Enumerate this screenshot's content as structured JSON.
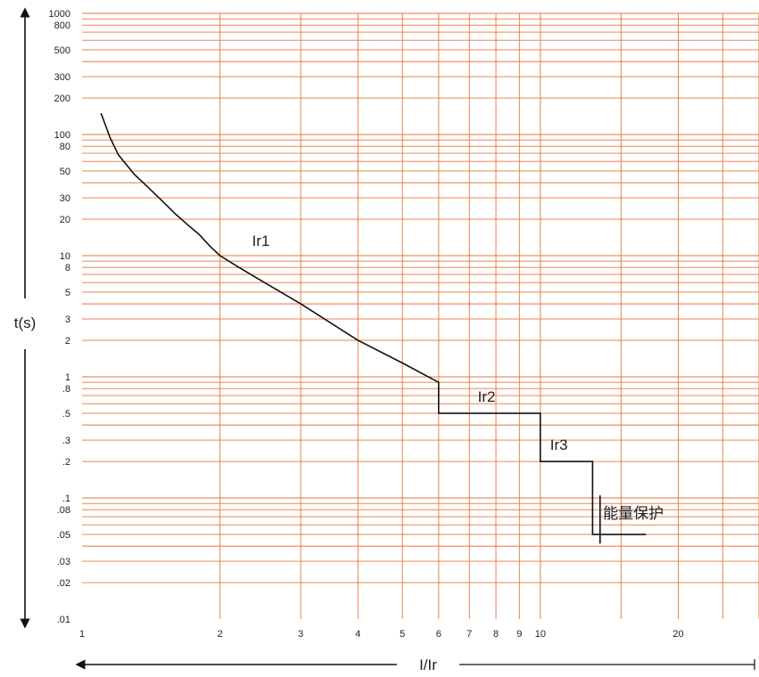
{
  "chart_data": {
    "type": "line",
    "title": "",
    "xlabel": "I/Ir",
    "ylabel": "t(s)",
    "x_scale": "log",
    "y_scale": "log",
    "xlim": [
      1,
      30
    ],
    "ylim": [
      0.01,
      1000
    ],
    "grid": true,
    "grid_color": "#e8743b",
    "curve_color": "#111111",
    "x_ticks": [
      {
        "value": 1,
        "label": "1"
      },
      {
        "value": 2,
        "label": "2"
      },
      {
        "value": 3,
        "label": "3"
      },
      {
        "value": 4,
        "label": "4"
      },
      {
        "value": 5,
        "label": "5"
      },
      {
        "value": 6,
        "label": "6"
      },
      {
        "value": 7,
        "label": "7"
      },
      {
        "value": 8,
        "label": "8"
      },
      {
        "value": 9,
        "label": "9"
      },
      {
        "value": 10,
        "label": "10"
      },
      {
        "value": 20,
        "label": "20"
      }
    ],
    "x_grid": [
      2,
      3,
      4,
      5,
      6,
      7,
      8,
      9,
      10,
      15,
      20,
      25,
      30
    ],
    "y_ticks": [
      {
        "value": 1000,
        "label": "1000"
      },
      {
        "value": 800,
        "label": "800"
      },
      {
        "value": 500,
        "label": "500"
      },
      {
        "value": 300,
        "label": "300"
      },
      {
        "value": 200,
        "label": "200"
      },
      {
        "value": 100,
        "label": "100"
      },
      {
        "value": 80,
        "label": "80"
      },
      {
        "value": 50,
        "label": "50"
      },
      {
        "value": 30,
        "label": "30"
      },
      {
        "value": 20,
        "label": "20"
      },
      {
        "value": 10,
        "label": "10"
      },
      {
        "value": 8,
        "label": "8"
      },
      {
        "value": 5,
        "label": "5"
      },
      {
        "value": 3,
        "label": "3"
      },
      {
        "value": 2,
        "label": "2"
      },
      {
        "value": 1,
        "label": "1"
      },
      {
        "value": 0.8,
        "label": ".8"
      },
      {
        "value": 0.5,
        "label": ".5"
      },
      {
        "value": 0.3,
        "label": ".3"
      },
      {
        "value": 0.2,
        "label": ".2"
      },
      {
        "value": 0.1,
        "label": ".1"
      },
      {
        "value": 0.08,
        "label": ".08"
      },
      {
        "value": 0.05,
        "label": ".05"
      },
      {
        "value": 0.03,
        "label": ".03"
      },
      {
        "value": 0.02,
        "label": ".02"
      },
      {
        "value": 0.01,
        "label": ".01"
      }
    ],
    "y_grid": [
      1000,
      900,
      800,
      700,
      600,
      500,
      400,
      300,
      200,
      100,
      90,
      80,
      70,
      60,
      50,
      40,
      30,
      20,
      10,
      9,
      8,
      7,
      6,
      5,
      4,
      3,
      2,
      1,
      0.9,
      0.8,
      0.7,
      0.6,
      0.5,
      0.4,
      0.3,
      0.2,
      0.1,
      0.09,
      0.08,
      0.07,
      0.06,
      0.05,
      0.04,
      0.03,
      0.02
    ],
    "series": [
      {
        "values": [
          [
            1.1,
            150
          ],
          [
            1.15,
            95
          ],
          [
            1.2,
            68
          ],
          [
            1.3,
            47
          ],
          [
            1.4,
            36
          ],
          [
            1.5,
            28
          ],
          [
            1.6,
            22
          ],
          [
            1.7,
            18
          ],
          [
            1.8,
            15
          ],
          [
            1.9,
            12
          ],
          [
            2.0,
            10
          ],
          [
            2.2,
            8
          ],
          [
            2.5,
            6
          ],
          [
            3.0,
            4
          ],
          [
            4.0,
            2
          ],
          [
            5.0,
            1.3
          ],
          [
            6.0,
            0.9
          ],
          [
            6.0,
            0.5
          ],
          [
            10.0,
            0.5
          ],
          [
            10.0,
            0.2
          ],
          [
            13.0,
            0.2
          ],
          [
            13.0,
            0.05
          ],
          [
            17.0,
            0.05
          ]
        ]
      }
    ],
    "marker": {
      "x": 13.5,
      "y_from": 0.042,
      "y_to": 0.105
    },
    "annotations": [
      {
        "text": "Ir1",
        "x": 2.35,
        "y": 12
      },
      {
        "text": "Ir2",
        "x": 7.3,
        "y": 0.62
      },
      {
        "text": "Ir3",
        "x": 10.5,
        "y": 0.25
      },
      {
        "text": "能量保护",
        "x": 13.7,
        "y": 0.068
      }
    ]
  }
}
